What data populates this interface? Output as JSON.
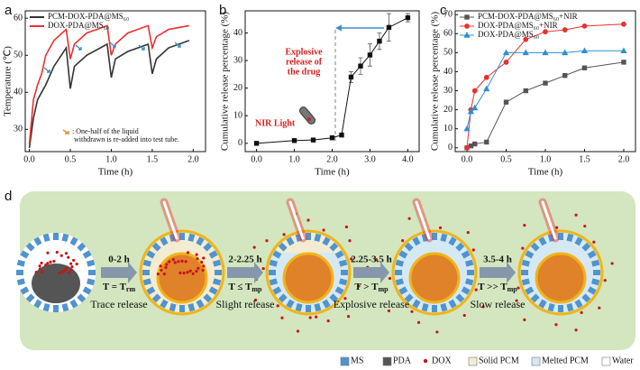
{
  "chart_data": [
    {
      "label": "a",
      "type": "line",
      "xlabel": "Time (h)",
      "ylabel": "Temperature (℃)",
      "x": [
        0,
        0.05,
        0.1,
        0.15,
        0.2,
        0.3,
        0.45,
        0.5,
        0.55,
        0.7,
        0.95,
        1.0,
        1.05,
        1.2,
        1.45,
        1.5,
        1.55,
        1.7,
        1.95
      ],
      "xlim": [
        -0.05,
        2.15
      ],
      "xticks": [
        {
          "value": 0,
          "label": "0.0"
        },
        0.5,
        {
          "value": 1,
          "label": "1.0"
        },
        1.5,
        {
          "value": 2,
          "label": "2.0"
        }
      ],
      "ylim": [
        24,
        62
      ],
      "yticks": [
        30,
        40,
        50,
        60
      ],
      "legend": "upper left",
      "series": [
        {
          "name": "PCM-DOX-PDA@MS₆₀",
          "color": "#333333",
          "values": [
            25,
            33,
            38,
            40,
            42,
            47,
            52,
            41,
            47,
            50,
            53,
            44,
            49,
            51,
            53,
            45,
            49,
            52,
            54
          ]
        },
        {
          "name": "DOX-PDA@MS₆₀",
          "color": "#e8312f",
          "values": [
            26,
            38,
            42,
            45,
            50,
            54,
            57,
            49,
            53,
            56,
            58,
            50,
            53,
            56,
            58,
            52,
            55,
            57,
            58
          ]
        }
      ],
      "annotation_lines": [
        ": One-half of the liquid",
        "withdrawn is re-added into test tube."
      ]
    },
    {
      "label": "b",
      "type": "errorbar",
      "xlabel": "Time (h)",
      "ylabel": "Cumulative release percentage (%)",
      "x": [
        0,
        1,
        1.5,
        2,
        2.25,
        2.5,
        2.75,
        3,
        3.25,
        3.5,
        4
      ],
      "xlim": [
        -0.3,
        4.3
      ],
      "xticks": [
        {
          "value": 0,
          "label": "0.0"
        },
        {
          "value": 1,
          "label": "1.0"
        },
        {
          "value": 2,
          "label": "2.0"
        },
        {
          "value": 3,
          "label": "3.0"
        },
        {
          "value": 4,
          "label": "4.0"
        }
      ],
      "ylim": [
        -3,
        48
      ],
      "yticks": [
        0,
        10,
        20,
        30,
        40
      ],
      "series": [
        {
          "color": "#111111",
          "marker": "square",
          "values": [
            0,
            1,
            1.2,
            2,
            3,
            24,
            28,
            32,
            37,
            42,
            45.5
          ],
          "errors": [
            0.5,
            0.5,
            0.5,
            0.5,
            0.5,
            2,
            3,
            4,
            3,
            5,
            1.5
          ]
        }
      ],
      "nir_label": "NIR Light",
      "explosive_lines": [
        "Explosive",
        "release of",
        "the drug"
      ]
    },
    {
      "label": "c",
      "type": "line",
      "xlabel": "Time (h)",
      "ylabel": "Cumulative release percentage (%)",
      "x": [
        0,
        0.05,
        0.1,
        0.25,
        0.5,
        0.75,
        1,
        1.25,
        1.5,
        2
      ],
      "xlim": [
        -0.15,
        2.15
      ],
      "xticks": [
        {
          "value": 0,
          "label": "0.0"
        },
        0.5,
        {
          "value": 1,
          "label": "1.0"
        },
        1.5,
        {
          "value": 2,
          "label": "2.0"
        }
      ],
      "ylim": [
        -2,
        72
      ],
      "yticks": [
        0,
        10,
        20,
        30,
        40,
        50,
        60,
        70
      ],
      "legend": "upper left",
      "series": [
        {
          "name": "PCM-DOX-PDA@MS₆₀+NIR",
          "color": "#555555",
          "marker": "square",
          "values": [
            0,
            1,
            2,
            3,
            24,
            30,
            34,
            38,
            42,
            45
          ]
        },
        {
          "name": "DOX-PDA@MS₆₀+NIR",
          "color": "#e8312f",
          "marker": "circle",
          "values": [
            0,
            20,
            30,
            37,
            45,
            57,
            61,
            62,
            64,
            65
          ]
        },
        {
          "name": "DOX-PDA@MS₆₀",
          "color": "#2f8fd0",
          "marker": "triangle",
          "values": [
            10,
            19,
            21,
            31,
            50,
            50,
            50,
            50,
            51,
            51
          ]
        }
      ]
    }
  ],
  "diagram": {
    "label": "d",
    "steps": [
      {
        "time": "0-2 h",
        "condition": "T = T",
        "sub": "rm",
        "caption": "Trace release"
      },
      {
        "time": "2-2.25 h",
        "condition": "T ≤ T",
        "sub": "mp",
        "caption": "Slight release"
      },
      {
        "time": "2.25-3.5 h",
        "condition": "T > T",
        "sub": "mp",
        "caption": "Explosive release"
      },
      {
        "time": "3.5-4 h",
        "condition": "T >> T",
        "sub": "mp",
        "caption": "Slow release"
      }
    ],
    "legend": [
      "MS",
      "PDA",
      "DOX",
      "Solid PCM",
      "Melted PCM",
      "Water"
    ]
  }
}
